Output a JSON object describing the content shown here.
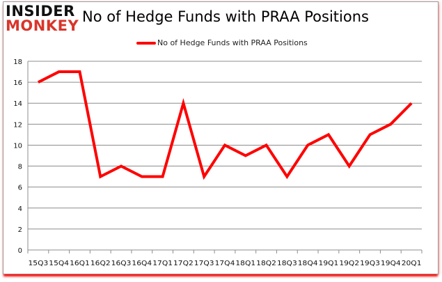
{
  "logo": {
    "line1": "INSIDER",
    "line2": "MONKEY"
  },
  "chart_data": {
    "type": "line",
    "title": "No of Hedge Funds with PRAA Positions",
    "categories": [
      "15Q3",
      "15Q4",
      "16Q1",
      "16Q2",
      "16Q3",
      "16Q4",
      "17Q1",
      "17Q2",
      "17Q3",
      "17Q4",
      "18Q1",
      "18Q2",
      "18Q3",
      "18Q4",
      "19Q1",
      "19Q2",
      "19Q3",
      "19Q4",
      "20Q1"
    ],
    "series": [
      {
        "name": "No of Hedge Funds with PRAA Positions",
        "color": "#ff0000",
        "values": [
          16,
          17,
          17,
          7,
          8,
          7,
          7,
          14,
          7,
          10,
          9,
          10,
          7,
          10,
          11,
          8,
          11,
          12,
          14
        ]
      }
    ],
    "ylim": [
      0,
      18
    ],
    "yticks": [
      0,
      2,
      4,
      6,
      8,
      10,
      12,
      14,
      16,
      18
    ],
    "grid": true,
    "legend": "top",
    "xlabel": "",
    "ylabel": ""
  }
}
